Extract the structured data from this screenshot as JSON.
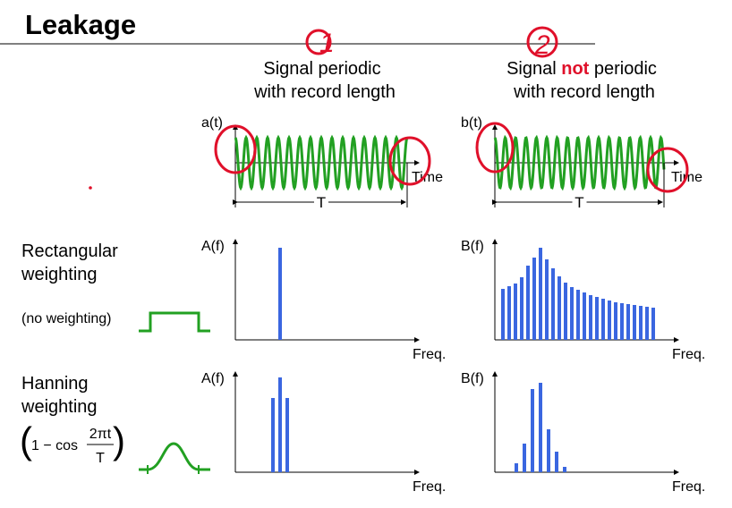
{
  "header": {
    "title": "Leakage"
  },
  "columns": [
    {
      "heading": [
        "Signal periodic",
        "with record length"
      ],
      "mark": "1",
      "time_plot": {
        "y_label": "a(t)",
        "x_label": "Time",
        "span_label": "T"
      },
      "rect_plot": {
        "y_label": "A(f)",
        "x_label": "Freq."
      },
      "hann_plot": {
        "y_label": "A(f)",
        "x_label": "Freq."
      }
    },
    {
      "heading": [
        "Signal",
        "not",
        "periodic",
        "with record length"
      ],
      "mark": "2",
      "time_plot": {
        "y_label": "b(t)",
        "x_label": "Time",
        "span_label": "T"
      },
      "rect_plot": {
        "y_label": "B(f)",
        "x_label": "Freq."
      },
      "hann_plot": {
        "y_label": "B(f)",
        "x_label": "Freq."
      }
    }
  ],
  "rows": [
    {
      "label": [
        "Rectangular",
        "weighting"
      ],
      "note": "(no weighting)"
    },
    {
      "label": [
        "Hanning",
        "weighting"
      ],
      "formula": {
        "left": "1 − cos",
        "numerator": "2πt",
        "denominator": "T"
      }
    }
  ]
}
